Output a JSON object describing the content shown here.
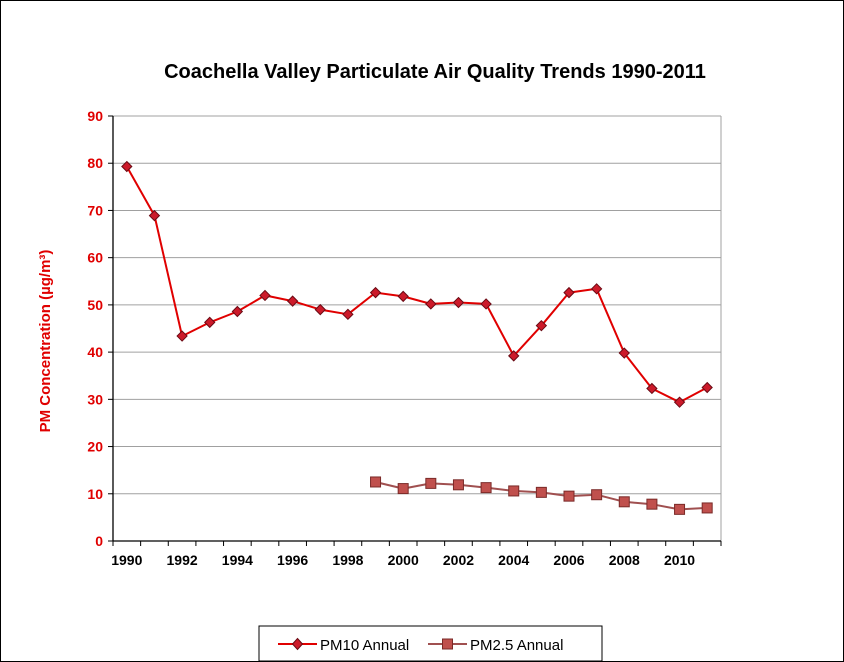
{
  "chart_data": {
    "type": "line",
    "title": "Coachella Valley Particulate Air Quality Trends 1990-2011",
    "ylabel": "PM Concentration (µg/m³)",
    "xlabel": "",
    "ylim": [
      0,
      90
    ],
    "xlim": [
      1990,
      2011
    ],
    "yticks": [
      "0",
      "10",
      "20",
      "30",
      "40",
      "50",
      "60",
      "70",
      "80",
      "90"
    ],
    "xticks": [
      "1990",
      "1992",
      "1994",
      "1996",
      "1998",
      "2000",
      "2002",
      "2004",
      "2006",
      "2008",
      "2010"
    ],
    "grid": "horizontal",
    "legend_position": "bottom",
    "colors": {
      "pm10_line": "#e00000",
      "pm10_marker_fill": "#cc1a2a",
      "pm10_marker_stroke": "#6a0a14",
      "pm25_line": "#a05050",
      "pm25_marker_fill": "#c0504d",
      "pm25_marker_stroke": "#7a2a28",
      "axis_label": "#e00000",
      "grid": "#a0a0a0"
    },
    "series": [
      {
        "name": "PM10 Annual",
        "marker": "diamond",
        "x": [
          1990,
          1991,
          1992,
          1993,
          1994,
          1995,
          1996,
          1997,
          1998,
          1999,
          2000,
          2001,
          2002,
          2003,
          2004,
          2005,
          2006,
          2007,
          2008,
          2009,
          2010,
          2011
        ],
        "values": [
          79.3,
          68.9,
          43.4,
          46.3,
          48.6,
          52.0,
          50.8,
          49.0,
          48.0,
          52.6,
          51.8,
          50.2,
          50.5,
          50.2,
          39.2,
          45.6,
          52.6,
          53.4,
          39.8,
          32.3,
          29.4,
          32.5
        ]
      },
      {
        "name": "PM2.5 Annual",
        "marker": "square",
        "x": [
          1999,
          2000,
          2001,
          2002,
          2003,
          2004,
          2005,
          2006,
          2007,
          2008,
          2009,
          2010,
          2011
        ],
        "values": [
          12.5,
          11.1,
          12.2,
          11.9,
          11.3,
          10.6,
          10.3,
          9.5,
          9.8,
          8.3,
          7.8,
          6.7,
          7.0
        ]
      }
    ]
  }
}
